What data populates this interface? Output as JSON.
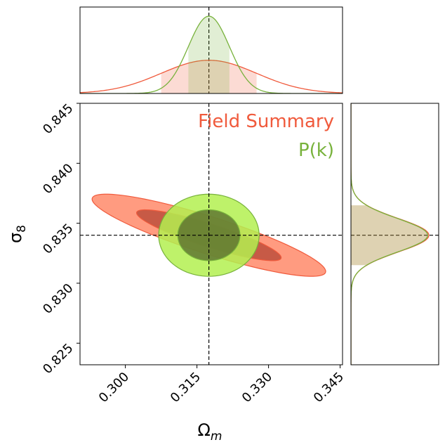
{
  "chart_data": {
    "type": "corner-contour",
    "title": "",
    "xlabel": "Ω",
    "xlabel_sub": "m",
    "ylabel": "σ",
    "ylabel_sub": "8",
    "xlim": [
      0.2905,
      0.3455
    ],
    "ylim": [
      0.8232,
      0.845
    ],
    "xticks": [
      0.3,
      0.315,
      0.33,
      0.345
    ],
    "xtick_labels": [
      "0.300",
      "0.315",
      "0.330",
      "0.345"
    ],
    "yticks": [
      0.825,
      0.83,
      0.835,
      0.84,
      0.845
    ],
    "ytick_labels": [
      "0.825",
      "0.830",
      "0.835",
      "0.840",
      "0.845"
    ],
    "fiducial": {
      "omega_m": 0.3175,
      "sigma_8": 0.834
    },
    "legend": {
      "position": "top-right"
    },
    "series": [
      {
        "name": "Field Summary",
        "color": "#f05a3c",
        "fill_color": "#ff8a6a",
        "dark_fill": "#b94a37",
        "omega_m": {
          "mean": 0.3175,
          "sigma": 0.01
        },
        "sigma_8": {
          "mean": 0.834,
          "sigma": 0.0014
        },
        "correlation": -0.88
      },
      {
        "name": "P(k)",
        "color": "#78b23c",
        "fill_color": "#b3f050",
        "dark_fill": "#5a6e2e",
        "omega_m": {
          "mean": 0.3175,
          "sigma": 0.0043
        },
        "sigma_8": {
          "mean": 0.834,
          "sigma": 0.0014
        },
        "correlation": 0.0
      }
    ]
  }
}
